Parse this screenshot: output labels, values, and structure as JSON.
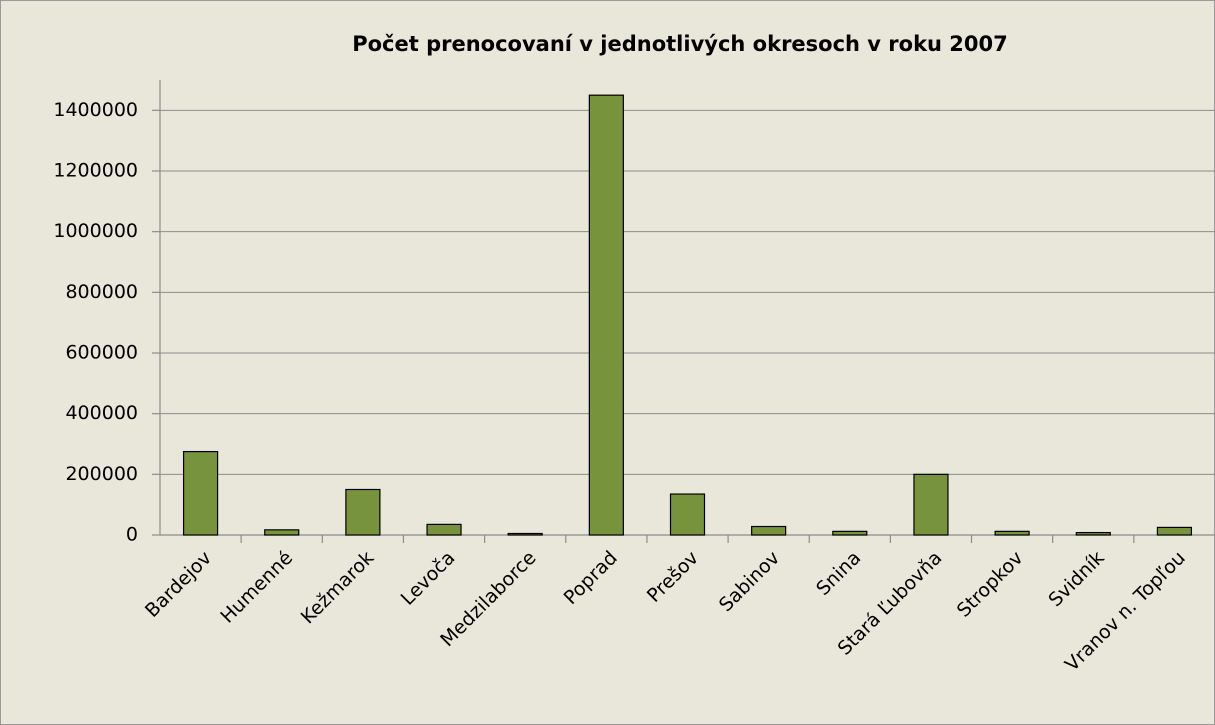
{
  "chart_data": {
    "type": "bar",
    "title": "Počet prenocovaní v jednotlivých okresoch v roku 2007",
    "categories": [
      "Bardejov",
      "Humenné",
      "Kežmarok",
      "Levoča",
      "Medzilaborce",
      "Poprad",
      "Prešov",
      "Sabinov",
      "Snina",
      "Stará Ľubovňa",
      "Stropkov",
      "Svidník",
      "Vranov n. Topľou"
    ],
    "values": [
      275000,
      17000,
      150000,
      35000,
      5000,
      1450000,
      135000,
      28000,
      12000,
      200000,
      12000,
      8000,
      25000
    ],
    "color": "#77933c",
    "ylim": [
      0,
      1500000
    ],
    "yticks": [
      0,
      200000,
      400000,
      600000,
      800000,
      1000000,
      1200000,
      1400000
    ],
    "grid": true
  }
}
